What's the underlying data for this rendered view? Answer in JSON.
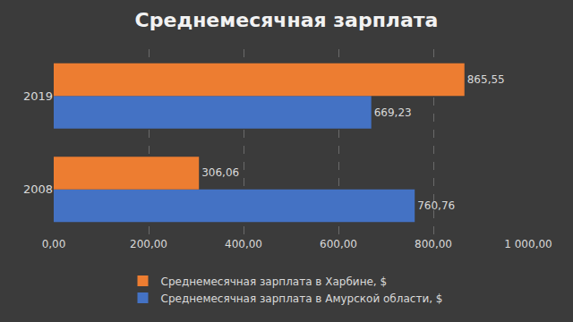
{
  "chart_data": {
    "type": "bar",
    "orientation": "horizontal",
    "title": "Среднемесячная зарплата",
    "categories": [
      "2008",
      "2019"
    ],
    "series": [
      {
        "name": "Среднемесячная зарплата в Харбине, $",
        "color": "#ed7d31",
        "values": [
          306.06,
          865.55
        ],
        "value_labels": [
          "306,06",
          "865,55"
        ]
      },
      {
        "name": "Среднемесячная зарплата в Амурской области, $",
        "color": "#4472c4",
        "values": [
          760.76,
          669.23
        ],
        "value_labels": [
          "760,76",
          "669,23"
        ]
      }
    ],
    "xlim": [
      0,
      1000
    ],
    "xticks": [
      {
        "value": 0,
        "label": "0,00"
      },
      {
        "value": 200,
        "label": "200,00"
      },
      {
        "value": 400,
        "label": "400,00"
      },
      {
        "value": 600,
        "label": "600,00"
      },
      {
        "value": 800,
        "label": "800,00"
      },
      {
        "value": 1000,
        "label": "1 000,00"
      }
    ],
    "grid": true,
    "legend": "bottom",
    "data_labels": true
  }
}
